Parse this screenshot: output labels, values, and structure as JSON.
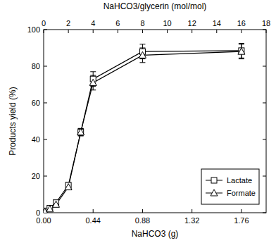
{
  "chart_data": {
    "type": "line",
    "x_label": "NaHCO3 (g)",
    "y_label": "Products yield (%)",
    "x2_label": "NaHCO3/glycerin (mol/mol)",
    "x": [
      0.011,
      0.055,
      0.11,
      0.22,
      0.33,
      0.44,
      0.88,
      1.76
    ],
    "series": [
      {
        "name": "Lactate",
        "color": "#000000",
        "marker": "square",
        "line_style": "solid",
        "values": [
          1,
          2.5,
          5.5,
          15,
          44,
          73,
          88,
          88.5
        ],
        "errors": [
          0.5,
          0.5,
          1,
          1.5,
          2,
          4,
          4,
          4
        ]
      },
      {
        "name": "Formate",
        "color": "#000000",
        "marker": "triangle",
        "line_style": "solid",
        "values": [
          0.5,
          2,
          4.5,
          14,
          44,
          71,
          86,
          88
        ],
        "errors": [
          0.5,
          0.5,
          1,
          1.5,
          2,
          4,
          4,
          4
        ]
      }
    ],
    "xlim": [
      0,
      1.98
    ],
    "xticks": [
      {
        "value": 0,
        "label": "0.00"
      },
      0.44,
      0.88,
      1.32,
      1.76
    ],
    "x2lim": [
      0,
      18
    ],
    "x2ticks": [
      0,
      2,
      4,
      6,
      8,
      10,
      12,
      14,
      16,
      18
    ],
    "ylim": [
      0,
      100
    ],
    "yticks": [
      0,
      20,
      40,
      60,
      80,
      100
    ],
    "grid": false,
    "legend": "bottom-right"
  }
}
